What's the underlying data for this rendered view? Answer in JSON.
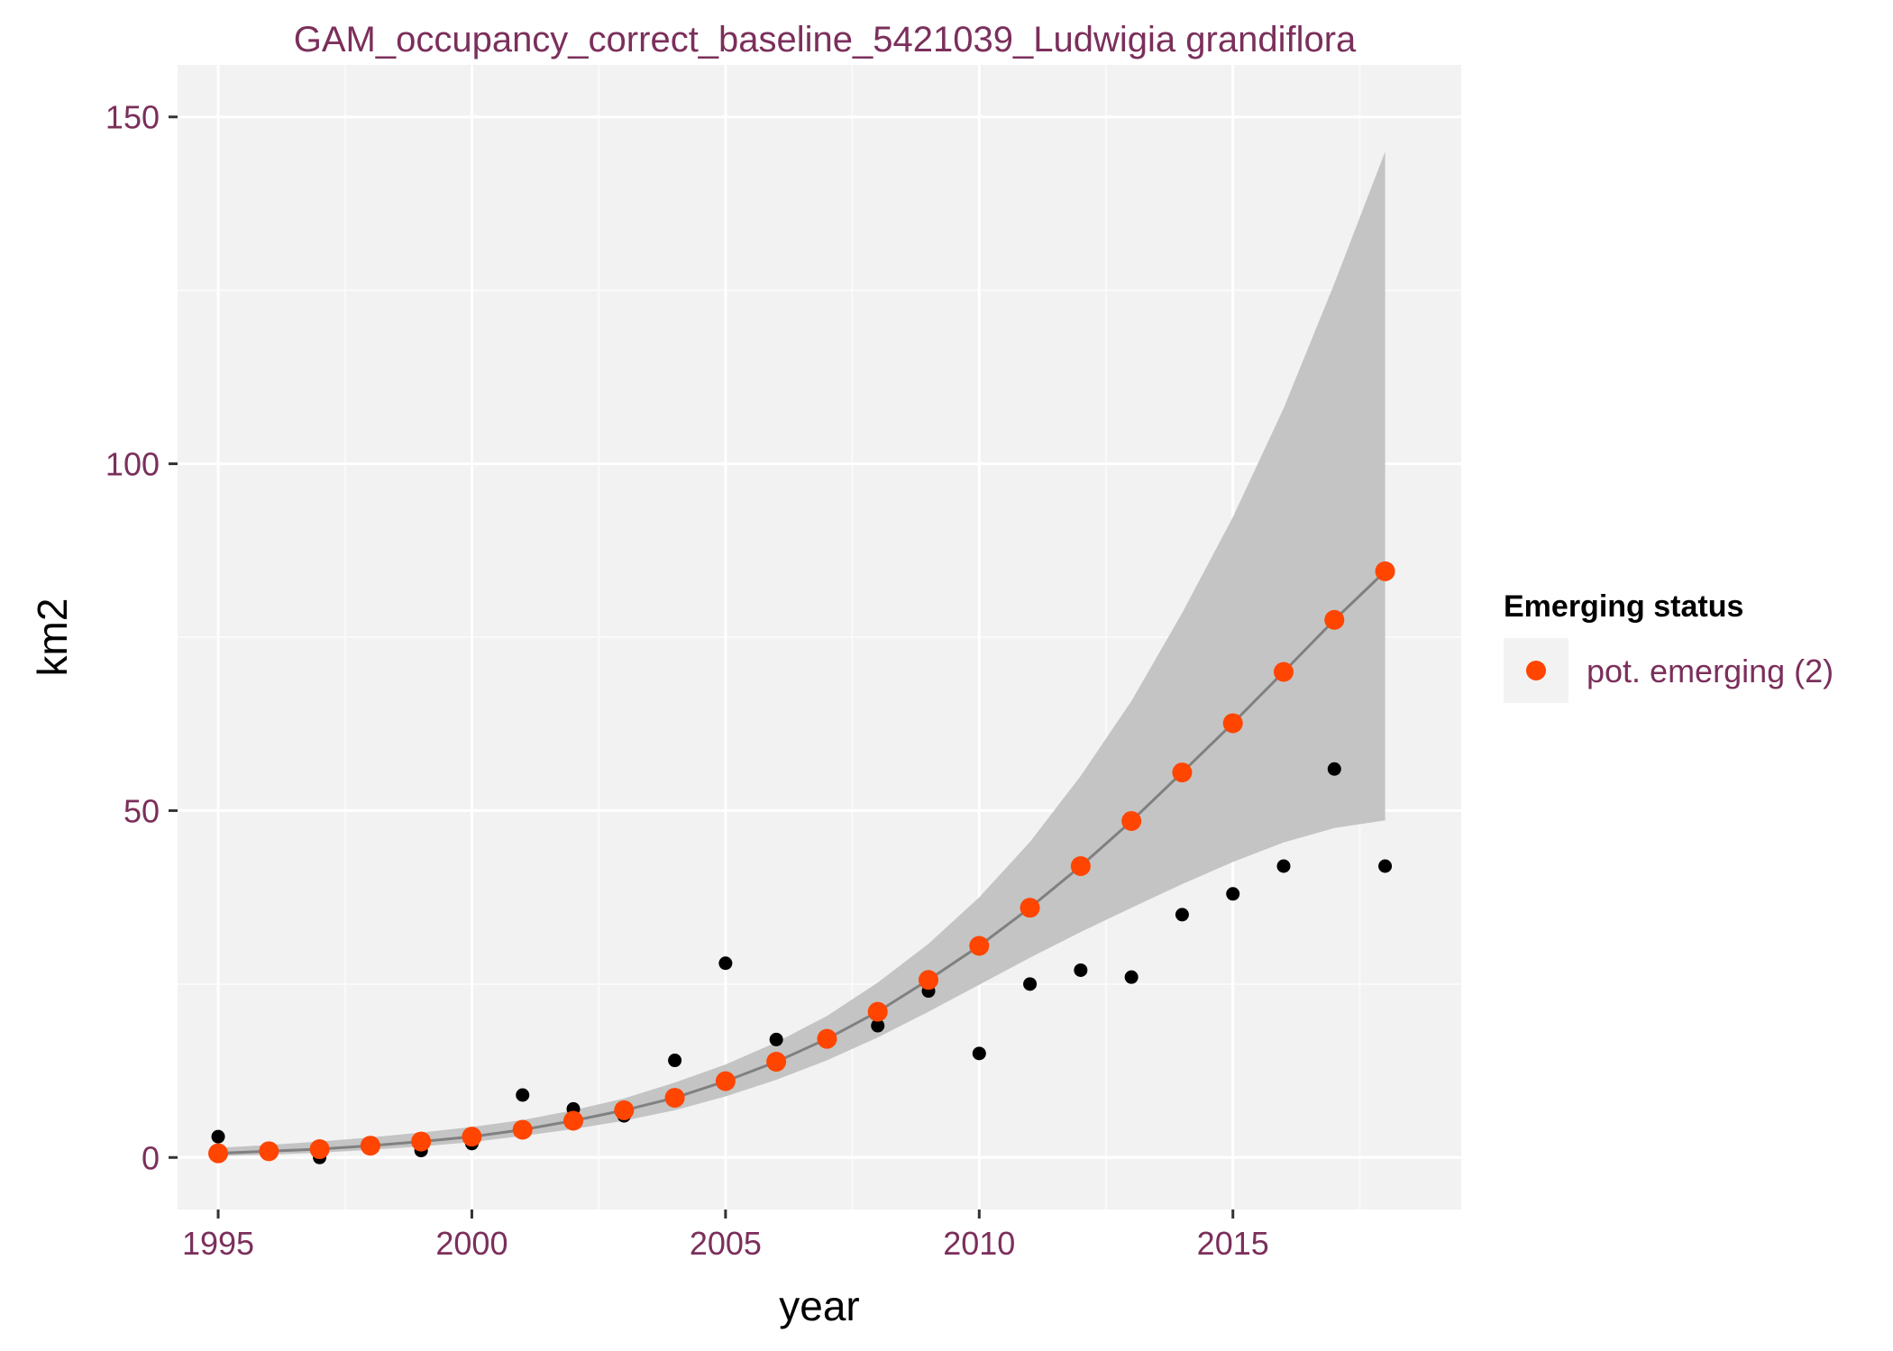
{
  "colors": {
    "panel_bg": "#f2f2f2",
    "grid_major": "#ffffff",
    "grid_minor": "#fafafa",
    "ribbon": "#c4c4c4",
    "fit_line": "#808080",
    "observed_point": "#000000",
    "emerging_point": "#ff4500",
    "title_text": "#7b2f5b",
    "tick_text": "#7b2f5b",
    "legend_key_bg": "#f2f2f2"
  },
  "chart_data": {
    "type": "scatter",
    "title": "GAM_occupancy_correct_baseline_5421039_Ludwigia grandiflora",
    "xlabel": "year",
    "ylabel": "km2",
    "xlim": [
      1994.2,
      2019.5
    ],
    "ylim": [
      -7.5,
      157.5
    ],
    "x_ticks": [
      1995,
      2000,
      2005,
      2010,
      2015
    ],
    "x_tick_labels": [
      "1995",
      "2000",
      "2005",
      "2010",
      "2015"
    ],
    "y_ticks": [
      0,
      50,
      100,
      150
    ],
    "y_tick_labels": [
      "0",
      "50",
      "100",
      "150"
    ],
    "grid": true,
    "legend": {
      "title": "Emerging status",
      "position": "right",
      "entries": [
        "pot. emerging (2)"
      ]
    },
    "years": [
      1995,
      1996,
      1997,
      1998,
      1999,
      2000,
      2001,
      2002,
      2003,
      2004,
      2005,
      2006,
      2007,
      2008,
      2009,
      2010,
      2011,
      2012,
      2013,
      2014,
      2015,
      2016,
      2017,
      2018
    ],
    "observed": [
      3,
      1,
      0,
      2,
      1,
      2,
      9,
      7,
      6,
      14,
      28,
      17,
      17,
      19,
      24,
      15,
      25,
      27,
      26,
      35,
      38,
      42,
      56,
      42
    ],
    "fitted": [
      0.6,
      0.9,
      1.2,
      1.7,
      2.3,
      3.0,
      4.0,
      5.3,
      6.8,
      8.6,
      11.0,
      13.8,
      17.1,
      21.0,
      25.6,
      30.5,
      36.0,
      42.0,
      48.5,
      55.5,
      62.6,
      70.0,
      77.5,
      84.5
    ],
    "lower": [
      0.2,
      0.4,
      0.7,
      1.1,
      1.6,
      2.2,
      3.1,
      4.1,
      5.3,
      6.8,
      8.8,
      11.2,
      14.0,
      17.3,
      21.0,
      24.9,
      28.8,
      32.5,
      36.0,
      39.4,
      42.6,
      45.4,
      47.5,
      48.6
    ],
    "upper": [
      1.4,
      1.8,
      2.3,
      2.9,
      3.6,
      4.4,
      5.4,
      6.8,
      8.5,
      10.8,
      13.4,
      16.6,
      20.4,
      25.2,
      30.8,
      37.5,
      45.5,
      55.0,
      65.8,
      78.5,
      92.3,
      108.0,
      126.0,
      145.0
    ]
  }
}
